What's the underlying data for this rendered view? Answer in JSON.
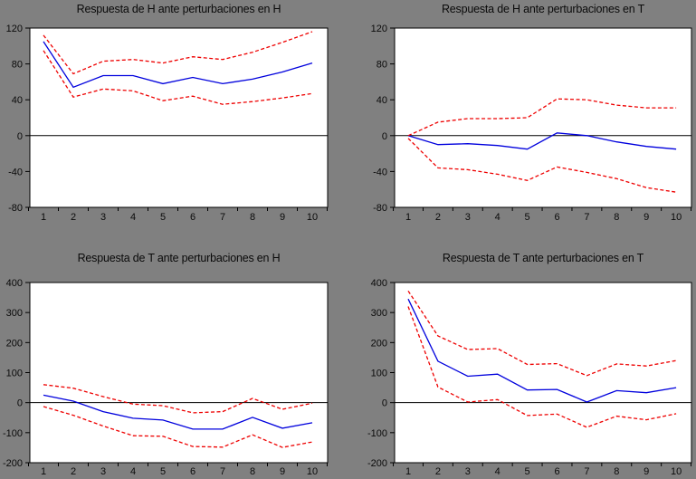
{
  "app": {
    "background_color": "#808080",
    "plot_background_color": "#ffffff"
  },
  "palette": {
    "response_line": "#0000dd",
    "confidence_band": "#ee0000",
    "axis": "#000000"
  },
  "chart_data": [
    {
      "type": "line",
      "title": "Respuesta de H ante perturbaciones en H",
      "x": [
        "1",
        "2",
        "3",
        "4",
        "5",
        "6",
        "7",
        "8",
        "9",
        "10"
      ],
      "xlabel": "",
      "ylabel": "",
      "ylim": [
        -80,
        120
      ],
      "yticks": [
        120,
        80,
        40,
        0,
        -40,
        -80
      ],
      "grid": false,
      "legend": "none",
      "series": [
        {
          "name": "respuesta",
          "style": "solid",
          "color_key": "response_line",
          "values": [
            105,
            54,
            67,
            67,
            58,
            65,
            58,
            63,
            71,
            81
          ]
        },
        {
          "name": "banda superior",
          "style": "dashed",
          "color_key": "confidence_band",
          "values": [
            112,
            69,
            83,
            85,
            81,
            88,
            85,
            93,
            104,
            116
          ]
        },
        {
          "name": "banda inferior",
          "style": "dashed",
          "color_key": "confidence_band",
          "values": [
            95,
            43,
            52,
            50,
            39,
            44,
            35,
            38,
            42,
            47
          ]
        }
      ]
    },
    {
      "type": "line",
      "title": "Respuesta de H ante perturbaciones en T",
      "x": [
        "1",
        "2",
        "3",
        "4",
        "5",
        "6",
        "7",
        "8",
        "9",
        "10"
      ],
      "xlabel": "",
      "ylabel": "",
      "ylim": [
        -80,
        120
      ],
      "yticks": [
        120,
        80,
        40,
        0,
        -40,
        -80
      ],
      "grid": false,
      "legend": "none",
      "series": [
        {
          "name": "respuesta",
          "style": "solid",
          "color_key": "response_line",
          "values": [
            0,
            -10,
            -9,
            -11,
            -15,
            3,
            0,
            -7,
            -12,
            -15
          ]
        },
        {
          "name": "banda superior",
          "style": "dashed",
          "color_key": "confidence_band",
          "values": [
            0,
            15,
            19,
            19,
            20,
            41,
            40,
            34,
            31,
            31
          ]
        },
        {
          "name": "banda inferior",
          "style": "dashed",
          "color_key": "confidence_band",
          "values": [
            -3,
            -36,
            -38,
            -43,
            -50,
            -35,
            -41,
            -48,
            -58,
            -63
          ]
        }
      ]
    },
    {
      "type": "line",
      "title": "Respuesta de T ante perturbaciones en H",
      "x": [
        "1",
        "2",
        "3",
        "4",
        "5",
        "6",
        "7",
        "8",
        "9",
        "10"
      ],
      "xlabel": "",
      "ylabel": "",
      "ylim": [
        -200,
        400
      ],
      "yticks": [
        400,
        300,
        200,
        100,
        0,
        -100,
        -200
      ],
      "grid": false,
      "legend": "none",
      "series": [
        {
          "name": "respuesta",
          "style": "solid",
          "color_key": "response_line",
          "values": [
            25,
            5,
            -30,
            -52,
            -58,
            -88,
            -88,
            -49,
            -85,
            -67
          ]
        },
        {
          "name": "banda superior",
          "style": "dashed",
          "color_key": "confidence_band",
          "values": [
            60,
            48,
            20,
            -5,
            -10,
            -34,
            -30,
            14,
            -22,
            -2
          ]
        },
        {
          "name": "banda inferior",
          "style": "dashed",
          "color_key": "confidence_band",
          "values": [
            -13,
            -42,
            -78,
            -110,
            -112,
            -146,
            -148,
            -107,
            -149,
            -131
          ]
        }
      ]
    },
    {
      "type": "line",
      "title": "Respuesta de T ante perturbaciones en T",
      "x": [
        "1",
        "2",
        "3",
        "4",
        "5",
        "6",
        "7",
        "8",
        "9",
        "10"
      ],
      "xlabel": "",
      "ylabel": "",
      "ylim": [
        -200,
        400
      ],
      "yticks": [
        400,
        300,
        200,
        100,
        0,
        -100,
        -200
      ],
      "grid": false,
      "legend": "none",
      "series": [
        {
          "name": "respuesta",
          "style": "solid",
          "color_key": "response_line",
          "values": [
            345,
            138,
            88,
            95,
            42,
            44,
            2,
            40,
            33,
            50
          ]
        },
        {
          "name": "banda superior",
          "style": "dashed",
          "color_key": "confidence_band",
          "values": [
            372,
            222,
            177,
            180,
            127,
            130,
            90,
            129,
            122,
            140
          ]
        },
        {
          "name": "banda inferior",
          "style": "dashed",
          "color_key": "confidence_band",
          "values": [
            320,
            52,
            2,
            10,
            -43,
            -38,
            -82,
            -45,
            -57,
            -37
          ]
        }
      ]
    }
  ]
}
